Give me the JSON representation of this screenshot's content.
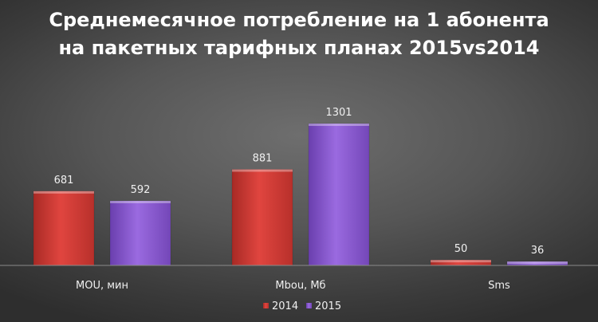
{
  "chart_data": {
    "type": "bar",
    "title_lines": [
      "Среднемесячное потребление на 1 абонента",
      "на пакетных тарифных планах 2015vs2014"
    ],
    "categories": [
      "MOU, мин",
      "Mbou, Мб",
      "Sms"
    ],
    "series": [
      {
        "name": "2014",
        "values": [
          681,
          881,
          50
        ],
        "color": "#d9403a"
      },
      {
        "name": "2015",
        "values": [
          592,
          1301,
          36
        ],
        "color": "#8e5bd0"
      }
    ],
    "ylim": [
      0,
      1301
    ],
    "grid": false,
    "legend_position": "bottom-center",
    "data_labels": true
  }
}
